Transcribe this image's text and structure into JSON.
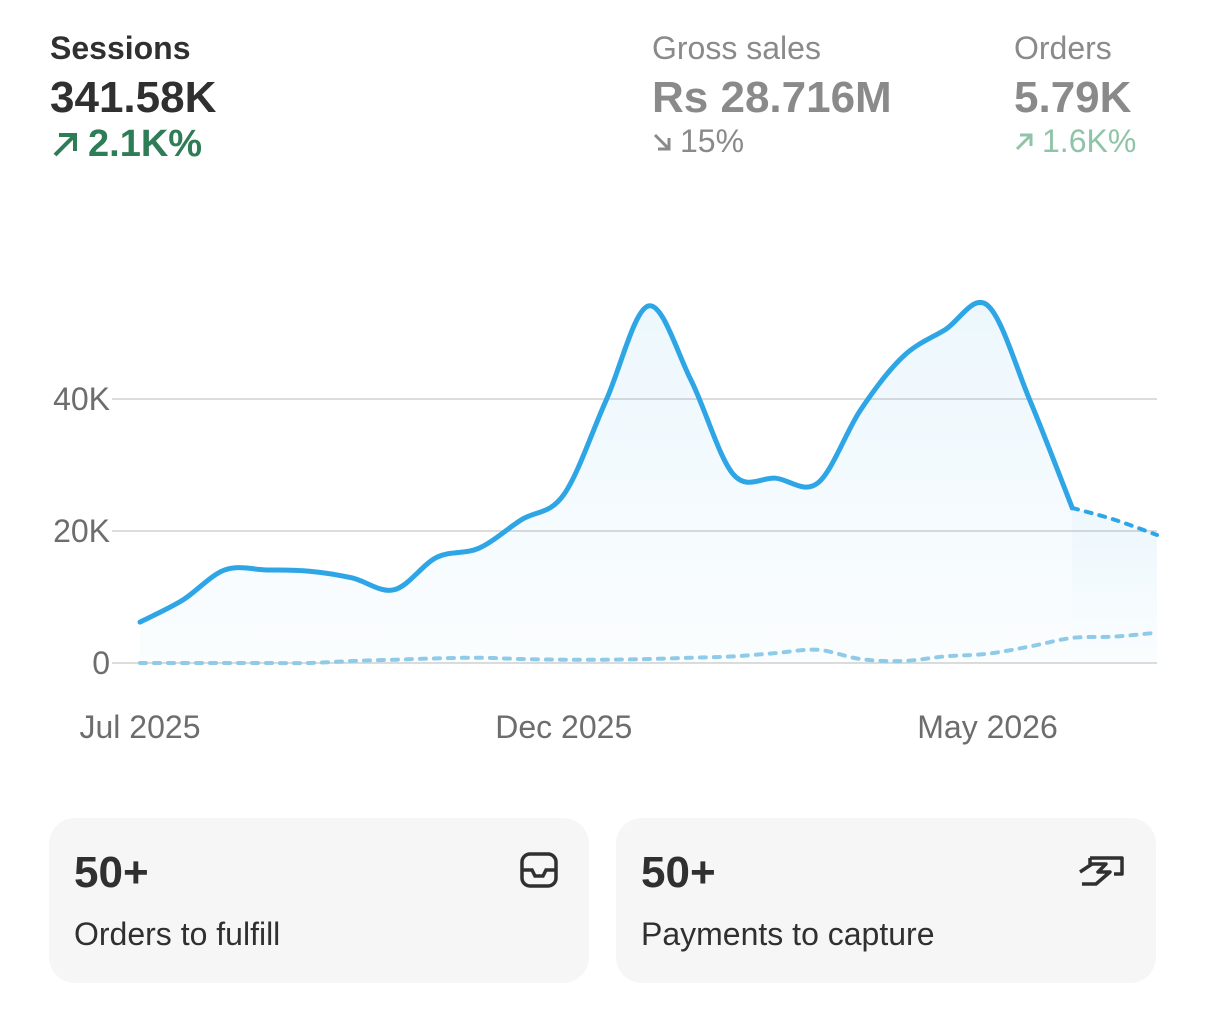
{
  "metrics": [
    {
      "label": "Sessions",
      "value": "341.58K",
      "change": "2.1K%",
      "direction": "up"
    },
    {
      "label": "Gross sales",
      "value": "Rs 28.716M",
      "change": "15%",
      "direction": "down"
    },
    {
      "label": "Orders",
      "value": "5.79K",
      "change": "1.6K%",
      "direction": "up"
    }
  ],
  "chart_data": {
    "type": "line",
    "categories": [
      "Jul 2025",
      null,
      null,
      null,
      null,
      null,
      null,
      null,
      null,
      null,
      "Dec 2025",
      null,
      null,
      null,
      null,
      null,
      null,
      null,
      null,
      null,
      "May 2026",
      null,
      null,
      null,
      null
    ],
    "series": [
      {
        "color": "#2ea6e6",
        "dash": false,
        "area": true,
        "values": [
          6200,
          9500,
          14100,
          14100,
          13900,
          12900,
          11100,
          16000,
          17400,
          21700,
          25500,
          39800,
          54100,
          42900,
          28600,
          28000,
          27300,
          38300,
          46400,
          50500,
          54200,
          39800,
          23500,
          null,
          null
        ]
      },
      {
        "color": "#2ea6e6",
        "dash": true,
        "area": true,
        "values": [
          null,
          null,
          null,
          null,
          null,
          null,
          null,
          null,
          null,
          null,
          null,
          null,
          null,
          null,
          null,
          null,
          null,
          null,
          null,
          null,
          null,
          null,
          23500,
          21700,
          19400
        ]
      },
      {
        "color": "#8fcbe8",
        "dash": true,
        "area": false,
        "values": [
          0,
          0,
          0,
          0,
          0,
          300,
          500,
          700,
          800,
          600,
          500,
          500,
          600,
          800,
          1000,
          1500,
          2000,
          600,
          300,
          1000,
          1400,
          2500,
          3800,
          4000,
          4600
        ]
      }
    ],
    "ylim": [
      0,
      55000
    ],
    "yticks": [
      {
        "value": 0,
        "label": "0"
      },
      {
        "value": 20000,
        "label": "20K"
      },
      {
        "value": 40000,
        "label": "40K"
      }
    ],
    "grid": true
  },
  "cards": [
    {
      "value": "50+",
      "label": "Orders to fulfill"
    },
    {
      "value": "50+",
      "label": "Payments to capture"
    }
  ]
}
